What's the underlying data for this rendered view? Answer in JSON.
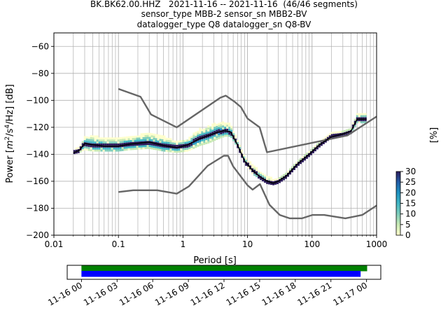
{
  "header": {
    "title_lines": [
      "BK.BK62.00.HHZ   2021-11-16 -- 2021-11-16  (46/46 segments)",
      "sensor_type MBB-2 sensor_sn MBB2-BV",
      "datalogger_type Q8 datalogger_sn Q8-BV"
    ]
  },
  "chart_data": [
    {
      "type": "heatmap",
      "subtype": "probabilistic-power-spectral-density",
      "xlabel": "Period [s]",
      "ylabel": "Power [m²/s⁴/Hz] [dB]",
      "ylabel_parts": {
        "pre": "Power [",
        "m": "m",
        "sup1": "2",
        "mid": "/s",
        "sup2": "4",
        "post": "/Hz] [dB]"
      },
      "x_scale": "log",
      "xlim": [
        0.01,
        1000
      ],
      "ylim": [
        -200,
        -50
      ],
      "x_ticks": [
        0.01,
        0.1,
        1,
        10,
        100,
        1000
      ],
      "x_tick_labels": [
        "0.01",
        "0.1",
        "1",
        "10",
        "100",
        "1000"
      ],
      "y_ticks": [
        -200,
        -180,
        -160,
        -140,
        -120,
        -100,
        -80,
        -60
      ],
      "y_tick_labels": [
        "−200",
        "−180",
        "−160",
        "−140",
        "−120",
        "−100",
        "−80",
        "−60"
      ],
      "grid": true,
      "colorbar": {
        "label": "[%]",
        "range": [
          0,
          30
        ],
        "ticks": [
          0,
          5,
          10,
          15,
          20,
          25,
          30
        ],
        "tick_labels": [
          "0",
          "5",
          "10",
          "15",
          "20",
          "25",
          "30"
        ],
        "colors": [
          "#ffffcc",
          "#c7e9b4",
          "#7fcdbb",
          "#41b6c4",
          "#1d91c0",
          "#225ea8",
          "#2b1a5a"
        ]
      },
      "series": [
        {
          "name": "",
          "role": "high-noise-model",
          "color": "#666666",
          "x": [
            0.1,
            0.22,
            0.32,
            0.8,
            3.8,
            4.6,
            6.3,
            7.9,
            10,
            15.4,
            20,
            354.8,
            1000
          ],
          "y": [
            -91.5,
            -97.4,
            -110.5,
            -120,
            -98,
            -96.5,
            -101,
            -105,
            -113.5,
            -120,
            -138.5,
            -126,
            -112
          ]
        },
        {
          "name": "",
          "role": "low-noise-model",
          "color": "#666666",
          "x": [
            0.1,
            0.17,
            0.4,
            0.8,
            1.24,
            2.4,
            4.3,
            5,
            6,
            10,
            12,
            15.6,
            21.9,
            31.6,
            45,
            70,
            101,
            154,
            328,
            600,
            1000
          ],
          "y": [
            -168,
            -166.7,
            -166.7,
            -169.2,
            -163.7,
            -148.6,
            -141.1,
            -141.1,
            -149,
            -163,
            -166.2,
            -162.1,
            -177.5,
            -185,
            -187.5,
            -187.5,
            -185,
            -185,
            -187.5,
            -185,
            -178
          ]
        },
        {
          "name": "",
          "role": "mode",
          "color": "#000000",
          "x": [
            0.02,
            0.025,
            0.03,
            0.04,
            0.06,
            0.1,
            0.15,
            0.3,
            0.5,
            0.8,
            1.2,
            1.8,
            2.5,
            3.5,
            4.5,
            5.5,
            7,
            9,
            12,
            16,
            20,
            25,
            30,
            40,
            60,
            90,
            130,
            200,
            300,
            400,
            500,
            700
          ],
          "y": [
            -139,
            -137,
            -132,
            -133,
            -134,
            -134,
            -132.5,
            -131,
            -133.5,
            -135,
            -133,
            -128.5,
            -126,
            -123.5,
            -122.5,
            -123.5,
            -133,
            -145,
            -152,
            -157,
            -160,
            -161.5,
            -160,
            -156,
            -147,
            -140,
            -133,
            -127,
            -125,
            -123,
            -114,
            -114
          ]
        }
      ],
      "ppsd_cloud": {
        "x": [
          0.02,
          0.025,
          0.03,
          0.04,
          0.06,
          0.1,
          0.15,
          0.3,
          0.5,
          0.8,
          1.2,
          1.8,
          2.5,
          3.5,
          4.5,
          5.5,
          7,
          9,
          12,
          16,
          20,
          25,
          30,
          40,
          60,
          90,
          130,
          200,
          300,
          400,
          500,
          700
        ],
        "low": [
          -140,
          -139,
          -137,
          -138,
          -138,
          -138,
          -137,
          -136,
          -138,
          -139,
          -138,
          -134,
          -132,
          -129,
          -127,
          -127,
          -135,
          -147,
          -155,
          -159,
          -162,
          -163,
          -162,
          -158,
          -149,
          -142,
          -135,
          -128,
          -127,
          -125,
          -117,
          -117
        ],
        "high": [
          -138,
          -135,
          -128,
          -127,
          -128,
          -128,
          -127,
          -125,
          -127,
          -131,
          -129,
          -122,
          -120,
          -117,
          -117,
          -118,
          -130,
          -142,
          -148,
          -154,
          -156,
          -159,
          -158,
          -154,
          -145,
          -138,
          -131,
          -125,
          -123,
          -121,
          -110,
          -110
        ]
      }
    },
    {
      "type": "timeline",
      "subtype": "data-coverage",
      "x_ticks": [
        "11-16 00",
        "11-16 03",
        "11-16 06",
        "11-16 09",
        "11-16 12",
        "11-16 15",
        "11-16 18",
        "11-16 21",
        "11-17 00"
      ],
      "x_tick_hours": [
        0,
        3,
        6,
        9,
        12,
        15,
        18,
        21,
        24
      ],
      "xlim_hours": [
        -1.2,
        25.2
      ],
      "bars": [
        {
          "row": "top",
          "color": "#008000",
          "start_hour": 0,
          "end_hour": 24.05
        },
        {
          "row": "bottom",
          "color": "#0000ff",
          "start_hour": 0,
          "end_hour": 23.5
        }
      ]
    }
  ]
}
